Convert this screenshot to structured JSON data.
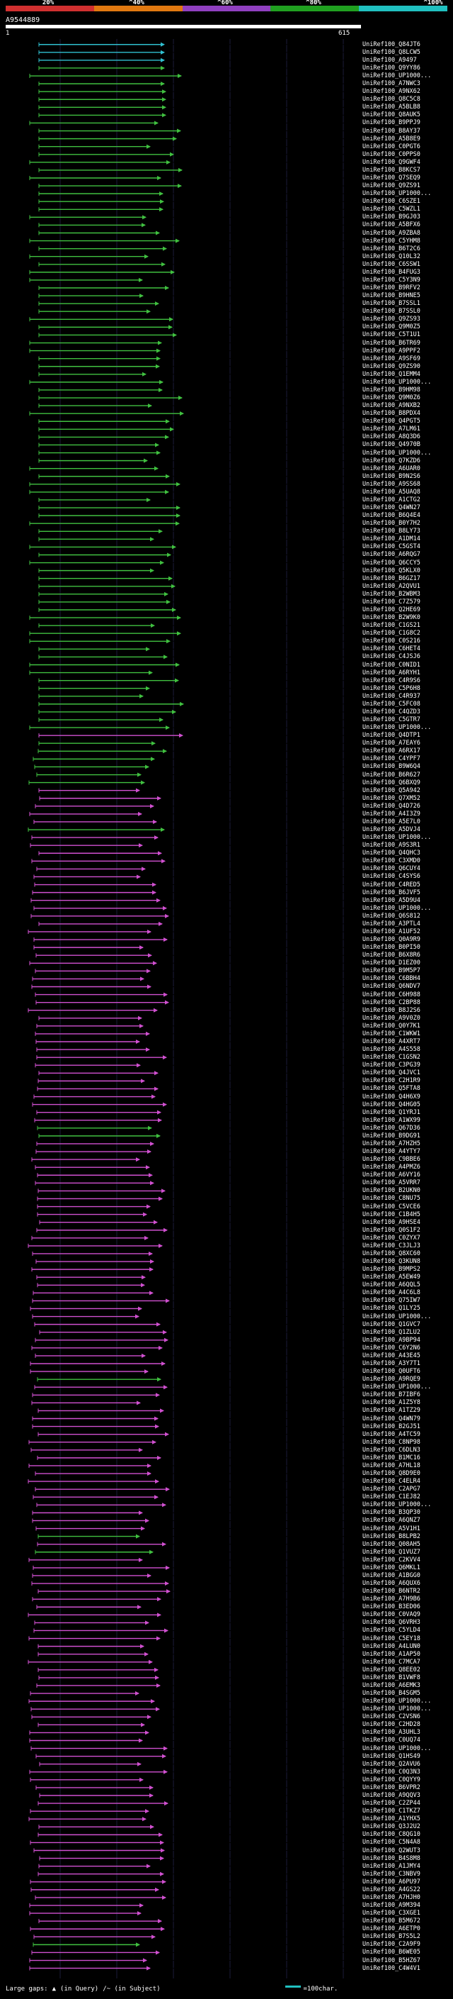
{
  "color_scale": {
    "labels": [
      "20%",
      "^40%",
      "^60%",
      "^80%",
      "^100%"
    ],
    "colors": [
      "#d03030",
      "#e07810",
      "#9040c0",
      "#20a020",
      "#20c0c0"
    ]
  },
  "query": {
    "name": "A9544889",
    "start_label": "1",
    "end_label": "615"
  },
  "hit_colors": {
    "cyan": "#30c0d0",
    "green": "#40c040",
    "magenta": "#d050d0"
  },
  "hits": [
    {
      "label": "UniRef100_Q84JT6",
      "color": "cyan"
    },
    {
      "label": "UniRef100_Q8LCW5",
      "color": "cyan"
    },
    {
      "label": "UniRef100_A9497",
      "color": "cyan"
    },
    {
      "label": "UniRef100_Q9YY86",
      "color": "green"
    },
    {
      "label": "UniRef100_UP1000...",
      "color": "green"
    },
    {
      "label": "UniRef100_A7NWC3",
      "color": "green"
    },
    {
      "label": "UniRef100_A9NX62",
      "color": "green"
    },
    {
      "label": "UniRef100_Q8C5C8",
      "color": "green"
    },
    {
      "label": "UniRef100_A5BLB8",
      "color": "green"
    },
    {
      "label": "UniRef100_Q8AUK5",
      "color": "green"
    },
    {
      "label": "UniRef100_B9PPJ9",
      "color": "green"
    },
    {
      "label": "UniRef100_B8AY37",
      "color": "green"
    },
    {
      "label": "UniRef100_A5B8E9",
      "color": "green"
    },
    {
      "label": "UniRef100_C0PGT6",
      "color": "green"
    },
    {
      "label": "UniRef100_C0PPS0",
      "color": "green"
    },
    {
      "label": "UniRef100_Q9GWF4",
      "color": "green"
    },
    {
      "label": "UniRef100_B8KCS7",
      "color": "green"
    },
    {
      "label": "UniRef100_Q7SEQ9",
      "color": "green"
    },
    {
      "label": "UniRef100_Q9ZS91",
      "color": "green"
    },
    {
      "label": "UniRef100_UP1000...",
      "color": "green"
    },
    {
      "label": "UniRef100_C6SZE1",
      "color": "green"
    },
    {
      "label": "UniRef100_C5WZL1",
      "color": "green"
    },
    {
      "label": "UniRef100_B9GJ03",
      "color": "green"
    },
    {
      "label": "UniRef100_A5BFX6",
      "color": "green"
    },
    {
      "label": "UniRef100_A9ZBA8",
      "color": "green"
    },
    {
      "label": "UniRef100_C5YHM8",
      "color": "green"
    },
    {
      "label": "UniRef100_B6T2C6",
      "color": "green"
    },
    {
      "label": "UniRef100_Q10L32",
      "color": "green"
    },
    {
      "label": "UniRef100_C6SSW1",
      "color": "green"
    },
    {
      "label": "UniRef100_B4FUG3",
      "color": "green"
    },
    {
      "label": "UniRef100_C5Y3N9",
      "color": "green"
    },
    {
      "label": "UniRef100_B9RFV2",
      "color": "green"
    },
    {
      "label": "UniRef100_B9HNE5",
      "color": "green"
    },
    {
      "label": "UniRef100_B7SSL1",
      "color": "green"
    },
    {
      "label": "UniRef100_B7SSL0",
      "color": "green"
    },
    {
      "label": "UniRef100_Q9ZS93",
      "color": "green"
    },
    {
      "label": "UniRef100_Q9M0Z5",
      "color": "green"
    },
    {
      "label": "UniRef100_C5T1U1",
      "color": "green"
    },
    {
      "label": "UniRef100_B6TR69",
      "color": "green"
    },
    {
      "label": "UniRef100_A9PPF2",
      "color": "green"
    },
    {
      "label": "UniRef100_A9SF69",
      "color": "green"
    },
    {
      "label": "UniRef100_Q9ZS90",
      "color": "green"
    },
    {
      "label": "UniRef100_Q1EMM4",
      "color": "green"
    },
    {
      "label": "UniRef100_UP1000...",
      "color": "green"
    },
    {
      "label": "UniRef100_B9HM98",
      "color": "green"
    },
    {
      "label": "UniRef100_Q9M0Z6",
      "color": "green"
    },
    {
      "label": "UniRef100_A9NXB2",
      "color": "green"
    },
    {
      "label": "UniRef100_B8PDX4",
      "color": "green"
    },
    {
      "label": "UniRef100_Q4PGT5",
      "color": "green"
    },
    {
      "label": "UniRef100_A7LM61",
      "color": "green"
    },
    {
      "label": "UniRef100_A8Q3D6",
      "color": "green"
    },
    {
      "label": "UniRef100_Q4970B",
      "color": "green"
    },
    {
      "label": "UniRef100_UP1000...",
      "color": "green"
    },
    {
      "label": "UniRef100_Q7KZD6",
      "color": "green"
    },
    {
      "label": "UniRef100_A6UAR0",
      "color": "green"
    },
    {
      "label": "UniRef100_B9N2S6",
      "color": "green"
    },
    {
      "label": "UniRef100_A9SS68",
      "color": "green"
    },
    {
      "label": "UniRef100_A5UAQ8",
      "color": "green"
    },
    {
      "label": "UniRef100_A1CTG2",
      "color": "green"
    },
    {
      "label": "UniRef100_Q4WN27",
      "color": "green"
    },
    {
      "label": "UniRef100_B6Q4E4",
      "color": "green"
    },
    {
      "label": "UniRef100_B0Y7H2",
      "color": "green"
    },
    {
      "label": "UniRef100_B8LY73",
      "color": "green"
    },
    {
      "label": "UniRef100_A1DM14",
      "color": "green"
    },
    {
      "label": "UniRef100_C5GST4",
      "color": "green"
    },
    {
      "label": "UniRef100_A6RQG7",
      "color": "green"
    },
    {
      "label": "UniRef100_Q6CCY5",
      "color": "green"
    },
    {
      "label": "UniRef100_Q5KLX0",
      "color": "green"
    },
    {
      "label": "UniRef100_B6GZ17",
      "color": "green"
    },
    {
      "label": "UniRef100_A2QVU1",
      "color": "green"
    },
    {
      "label": "UniRef100_B2WBM3",
      "color": "green"
    },
    {
      "label": "UniRef100_C7Z579",
      "color": "green"
    },
    {
      "label": "UniRef100_Q2HE69",
      "color": "green"
    },
    {
      "label": "UniRef100_B2W9K0",
      "color": "green"
    },
    {
      "label": "UniRef100_C1GS21",
      "color": "green"
    },
    {
      "label": "UniRef100_C1G8C2",
      "color": "green"
    },
    {
      "label": "UniRef100_C0S216",
      "color": "green"
    },
    {
      "label": "UniRef100_C6HET4",
      "color": "green"
    },
    {
      "label": "UniRef100_C4JSJ6",
      "color": "green"
    },
    {
      "label": "UniRef100_C0NID1",
      "color": "green"
    },
    {
      "label": "UniRef100_A6RYH1",
      "color": "green"
    },
    {
      "label": "UniRef100_C4R9S6",
      "color": "green"
    },
    {
      "label": "UniRef100_C5P6H8",
      "color": "green"
    },
    {
      "label": "UniRef100_C4R937",
      "color": "green"
    },
    {
      "label": "UniRef100_C5FC08",
      "color": "green"
    },
    {
      "label": "UniRef100_C4QZD3",
      "color": "green"
    },
    {
      "label": "UniRef100_C5GTR7",
      "color": "green"
    },
    {
      "label": "UniRef100_UP1000...",
      "color": "green"
    },
    {
      "label": "UniRef100_Q4DTP1",
      "color": "magenta"
    },
    {
      "label": "UniRef100_A7EAY6",
      "color": "green"
    },
    {
      "label": "UniRef100_A6RX17",
      "color": "green"
    },
    {
      "label": "UniRef100_C4YPF7",
      "color": "green"
    },
    {
      "label": "UniRef100_B9W6Q4",
      "color": "green"
    },
    {
      "label": "UniRef100_B6R627",
      "color": "green"
    },
    {
      "label": "UniRef100_Q6BXQ9",
      "color": "green"
    },
    {
      "label": "UniRef100_Q5A942",
      "color": "magenta"
    },
    {
      "label": "UniRef100_Q7XM52",
      "color": "magenta"
    },
    {
      "label": "UniRef100_Q4D726",
      "color": "magenta"
    },
    {
      "label": "UniRef100_A4I3Z9",
      "color": "magenta"
    },
    {
      "label": "UniRef100_A5E7L0",
      "color": "magenta"
    },
    {
      "label": "UniRef100_A5DVJ4",
      "color": "green"
    },
    {
      "label": "UniRef100_UP1000...",
      "color": "magenta"
    },
    {
      "label": "UniRef100_A9S3R1",
      "color": "magenta"
    },
    {
      "label": "UniRef100_Q4QHC3",
      "color": "magenta"
    },
    {
      "label": "UniRef100_C3XMD0",
      "color": "magenta"
    },
    {
      "label": "UniRef100_Q6CUY4",
      "color": "magenta"
    },
    {
      "label": "UniRef100_C4SYS6",
      "color": "magenta"
    },
    {
      "label": "UniRef100_C4RED5",
      "color": "magenta"
    },
    {
      "label": "UniRef100_B6JVF5",
      "color": "magenta"
    },
    {
      "label": "UniRef100_A5D9U4",
      "color": "magenta"
    },
    {
      "label": "UniRef100_UP1000...",
      "color": "magenta"
    },
    {
      "label": "UniRef100_Q6S812",
      "color": "magenta"
    },
    {
      "label": "UniRef100_A3PTL4",
      "color": "magenta"
    },
    {
      "label": "UniRef100_A1UF52",
      "color": "magenta"
    },
    {
      "label": "UniRef100_Q0A9R9",
      "color": "magenta"
    },
    {
      "label": "UniRef100_B0PI50",
      "color": "magenta"
    },
    {
      "label": "UniRef100_B6X8R6",
      "color": "magenta"
    },
    {
      "label": "UniRef100_D1EZ00",
      "color": "magenta"
    },
    {
      "label": "UniRef100_B9M5P7",
      "color": "magenta"
    },
    {
      "label": "UniRef100_C6BBH4",
      "color": "magenta"
    },
    {
      "label": "UniRef100_Q6NDV7",
      "color": "magenta"
    },
    {
      "label": "UniRef100_C6H988",
      "color": "magenta"
    },
    {
      "label": "UniRef100_C2BP88",
      "color": "magenta"
    },
    {
      "label": "UniRef100_B8J2S6",
      "color": "magenta"
    },
    {
      "label": "UniRef100_A9V0Z0",
      "color": "magenta"
    },
    {
      "label": "UniRef100_Q0Y7K1",
      "color": "magenta"
    },
    {
      "label": "UniRef100_C1WKW1",
      "color": "magenta"
    },
    {
      "label": "UniRef100_A4XRT7",
      "color": "magenta"
    },
    {
      "label": "UniRef100_A4S558",
      "color": "magenta"
    },
    {
      "label": "UniRef100_C1GSN2",
      "color": "magenta"
    },
    {
      "label": "UniRef100_C3PG39",
      "color": "magenta"
    },
    {
      "label": "UniRef100_Q4JVC1",
      "color": "magenta"
    },
    {
      "label": "UniRef100_C2H1R9",
      "color": "magenta"
    },
    {
      "label": "UniRef100_Q5FTA8",
      "color": "magenta"
    },
    {
      "label": "UniRef100_Q4H6X9",
      "color": "magenta"
    },
    {
      "label": "UniRef100_Q4HG05",
      "color": "magenta"
    },
    {
      "label": "UniRef100_Q1YRJ1",
      "color": "magenta"
    },
    {
      "label": "UniRef100_A1WX99",
      "color": "magenta"
    },
    {
      "label": "UniRef100_Q67D36",
      "color": "green"
    },
    {
      "label": "UniRef100_B9DG91",
      "color": "green"
    },
    {
      "label": "UniRef100_A7HZH5",
      "color": "magenta"
    },
    {
      "label": "UniRef100_A4YTY7",
      "color": "magenta"
    },
    {
      "label": "UniRef100_C9BBE6",
      "color": "magenta"
    },
    {
      "label": "UniRef100_A4PMZ6",
      "color": "magenta"
    },
    {
      "label": "UniRef100_A6VY16",
      "color": "magenta"
    },
    {
      "label": "UniRef100_A5VRR7",
      "color": "magenta"
    },
    {
      "label": "UniRef100_B2UKN0",
      "color": "magenta"
    },
    {
      "label": "UniRef100_C8NU75",
      "color": "magenta"
    },
    {
      "label": "UniRef100_C5VCE6",
      "color": "magenta"
    },
    {
      "label": "UniRef100_C1B4H5",
      "color": "magenta"
    },
    {
      "label": "UniRef100_A9HSE4",
      "color": "magenta"
    },
    {
      "label": "UniRef100_Q0S1F2",
      "color": "magenta"
    },
    {
      "label": "UniRef100_C0ZYX7",
      "color": "magenta"
    },
    {
      "label": "UniRef100_C3JLJ3",
      "color": "magenta"
    },
    {
      "label": "UniRef100_Q8XC60",
      "color": "magenta"
    },
    {
      "label": "UniRef100_Q3KUN8",
      "color": "magenta"
    },
    {
      "label": "UniRef100_B9MPS2",
      "color": "magenta"
    },
    {
      "label": "UniRef100_A5EW49",
      "color": "magenta"
    },
    {
      "label": "UniRef100_A6QQL5",
      "color": "magenta"
    },
    {
      "label": "UniRef100_A4C6L8",
      "color": "magenta"
    },
    {
      "label": "UniRef100_Q75IW7",
      "color": "magenta"
    },
    {
      "label": "UniRef100_Q1LY25",
      "color": "magenta"
    },
    {
      "label": "UniRef100_UP1000...",
      "color": "magenta"
    },
    {
      "label": "UniRef100_Q1GVC7",
      "color": "magenta"
    },
    {
      "label": "UniRef100_Q1ZLU2",
      "color": "magenta"
    },
    {
      "label": "UniRef100_A9BP94",
      "color": "magenta"
    },
    {
      "label": "UniRef100_C6Y2N6",
      "color": "magenta"
    },
    {
      "label": "UniRef100_A43E45",
      "color": "magenta"
    },
    {
      "label": "UniRef100_A3Y7T1",
      "color": "magenta"
    },
    {
      "label": "UniRef100_Q0UFT6",
      "color": "magenta"
    },
    {
      "label": "UniRef100_A9RQE9",
      "color": "green"
    },
    {
      "label": "UniRef100_UP1000...",
      "color": "magenta"
    },
    {
      "label": "UniRef100_B7IBF6",
      "color": "magenta"
    },
    {
      "label": "UniRef100_A1Z5Y8",
      "color": "magenta"
    },
    {
      "label": "UniRef100_A1TZ29",
      "color": "magenta"
    },
    {
      "label": "UniRef100_Q4WN79",
      "color": "magenta"
    },
    {
      "label": "UniRef100_B2GJ51",
      "color": "magenta"
    },
    {
      "label": "UniRef100_A4TC59",
      "color": "magenta"
    },
    {
      "label": "UniRef100_C8NP98",
      "color": "magenta"
    },
    {
      "label": "UniRef100_C6DLN3",
      "color": "magenta"
    },
    {
      "label": "UniRef100_B1MC16",
      "color": "magenta"
    },
    {
      "label": "UniRef100_A7HL18",
      "color": "magenta"
    },
    {
      "label": "UniRef100_Q8D9E0",
      "color": "magenta"
    },
    {
      "label": "UniRef100_C4ELR4",
      "color": "magenta"
    },
    {
      "label": "UniRef100_C2APG7",
      "color": "magenta"
    },
    {
      "label": "UniRef100_C1EJ82",
      "color": "magenta"
    },
    {
      "label": "UniRef100_UP1000...",
      "color": "magenta"
    },
    {
      "label": "UniRef100_B3QP30",
      "color": "magenta"
    },
    {
      "label": "UniRef100_A6QNZ7",
      "color": "magenta"
    },
    {
      "label": "UniRef100_A5V1H1",
      "color": "magenta"
    },
    {
      "label": "UniRef100_B8LPB2",
      "color": "green"
    },
    {
      "label": "UniRef100_Q08AH5",
      "color": "magenta"
    },
    {
      "label": "UniRef100_Q1VUZ7",
      "color": "green"
    },
    {
      "label": "UniRef100_C2KVV4",
      "color": "magenta"
    },
    {
      "label": "UniRef100_Q6MKL1",
      "color": "magenta"
    },
    {
      "label": "UniRef100_A1BGG0",
      "color": "magenta"
    },
    {
      "label": "UniRef100_A6QUX6",
      "color": "magenta"
    },
    {
      "label": "UniRef100_B6NTR2",
      "color": "magenta"
    },
    {
      "label": "UniRef100_A7H9B6",
      "color": "magenta"
    },
    {
      "label": "UniRef100_B3ED06",
      "color": "magenta"
    },
    {
      "label": "UniRef100_C0VAQ9",
      "color": "magenta"
    },
    {
      "label": "UniRef100_Q6VRH3",
      "color": "magenta"
    },
    {
      "label": "UniRef100_C5YLD4",
      "color": "magenta"
    },
    {
      "label": "UniRef100_C5EY18",
      "color": "magenta"
    },
    {
      "label": "UniRef100_A4LUN0",
      "color": "magenta"
    },
    {
      "label": "UniRef100_A1AP50",
      "color": "magenta"
    },
    {
      "label": "UniRef100_C7MCA7",
      "color": "magenta"
    },
    {
      "label": "UniRef100_Q8EE02",
      "color": "magenta"
    },
    {
      "label": "UniRef100_B1VWF8",
      "color": "magenta"
    },
    {
      "label": "UniRef100_A6EMK3",
      "color": "magenta"
    },
    {
      "label": "UniRef100_B4SGM5",
      "color": "magenta"
    },
    {
      "label": "UniRef100_UP1000...",
      "color": "magenta"
    },
    {
      "label": "UniRef100_UP1000...",
      "color": "magenta"
    },
    {
      "label": "UniRef100_C2VSN6",
      "color": "magenta"
    },
    {
      "label": "UniRef100_C2HD28",
      "color": "magenta"
    },
    {
      "label": "UniRef100_A3UHL3",
      "color": "magenta"
    },
    {
      "label": "UniRef100_C0UQ74",
      "color": "magenta"
    },
    {
      "label": "UniRef100_UP1000...",
      "color": "magenta"
    },
    {
      "label": "UniRef100_Q1HS49",
      "color": "magenta"
    },
    {
      "label": "UniRef100_Q2AVU6",
      "color": "magenta"
    },
    {
      "label": "UniRef100_C0Q3N3",
      "color": "magenta"
    },
    {
      "label": "UniRef100_C0QYY9",
      "color": "magenta"
    },
    {
      "label": "UniRef100_B6VPR2",
      "color": "magenta"
    },
    {
      "label": "UniRef100_A9QQV3",
      "color": "magenta"
    },
    {
      "label": "UniRef100_C2ZP44",
      "color": "magenta"
    },
    {
      "label": "UniRef100_C1TKZ7",
      "color": "magenta"
    },
    {
      "label": "UniRef100_A1YHX5",
      "color": "magenta"
    },
    {
      "label": "UniRef100_Q3J2U2",
      "color": "magenta"
    },
    {
      "label": "UniRef100_C8QG10",
      "color": "magenta"
    },
    {
      "label": "UniRef100_C5N4A8",
      "color": "magenta"
    },
    {
      "label": "UniRef100_Q2WUT3",
      "color": "magenta"
    },
    {
      "label": "UniRef100_B4S8M8",
      "color": "magenta"
    },
    {
      "label": "UniRef100_A1JMY4",
      "color": "magenta"
    },
    {
      "label": "UniRef100_C3NBV9",
      "color": "magenta"
    },
    {
      "label": "UniRef100_A6PU97",
      "color": "magenta"
    },
    {
      "label": "UniRef100_A4GS22",
      "color": "magenta"
    },
    {
      "label": "UniRef100_A7HJH0",
      "color": "magenta"
    },
    {
      "label": "UniRef100_A9M394",
      "color": "magenta"
    },
    {
      "label": "UniRef100_C3XGE1",
      "color": "magenta"
    },
    {
      "label": "UniRef100_B5M672",
      "color": "magenta"
    },
    {
      "label": "UniRef100_A6ETP0",
      "color": "magenta"
    },
    {
      "label": "UniRef100_B7S5L2",
      "color": "magenta"
    },
    {
      "label": "UniRef100_C2A9F9",
      "color": "green"
    },
    {
      "label": "UniRef100_B6WE05",
      "color": "magenta"
    },
    {
      "label": "UniRef100_B5HZ67",
      "color": "magenta"
    },
    {
      "label": "UniRef100_C4W4V1",
      "color": "magenta"
    }
  ],
  "footer": {
    "gaps_label": "Large gaps:",
    "gap_query_symbol": "▲",
    "gap_query_text": "(in Query)",
    "gap_subject_text": "/~ (in Subject)",
    "scale_text": "=100char."
  }
}
